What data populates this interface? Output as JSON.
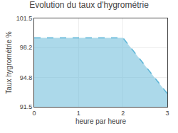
{
  "chart_data": {
    "type": "area",
    "title": "Evolution du taux d'hygrométrie",
    "xlabel": "heure par heure",
    "ylabel": "Taux hygrométrie %",
    "x": [
      0,
      0.5,
      2.0,
      3.0
    ],
    "values": [
      99.3,
      99.3,
      99.3,
      93.0
    ],
    "color": "#5ab4d6",
    "line_style": "dashed",
    "xlim": [
      0,
      3
    ],
    "xticks": [
      0,
      1,
      2,
      3
    ],
    "ylim": [
      91.5,
      101.5
    ],
    "yticks": [
      91.5,
      94.8,
      98.2,
      101.5
    ],
    "grid": true
  }
}
